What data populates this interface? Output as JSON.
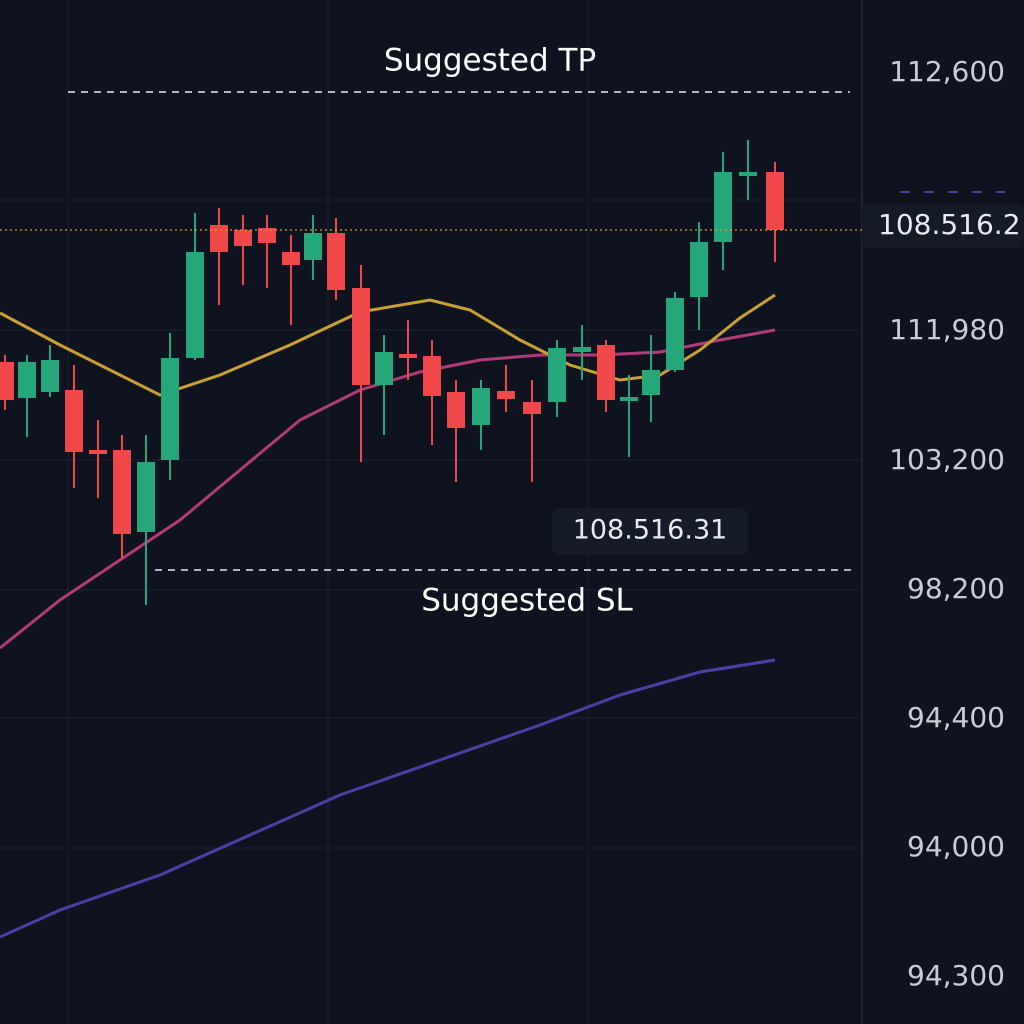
{
  "chart_panel": {
    "annotations": {
      "take_profit": "Suggested TP",
      "stop_loss": "Suggested SL",
      "price_badge": "108.516.31"
    },
    "current_price_label": "108.516.2",
    "price_axis_labels": [
      "112,600",
      "111,980",
      "103,200",
      "98,200",
      "94,400",
      "94,000",
      "94,300"
    ]
  }
}
